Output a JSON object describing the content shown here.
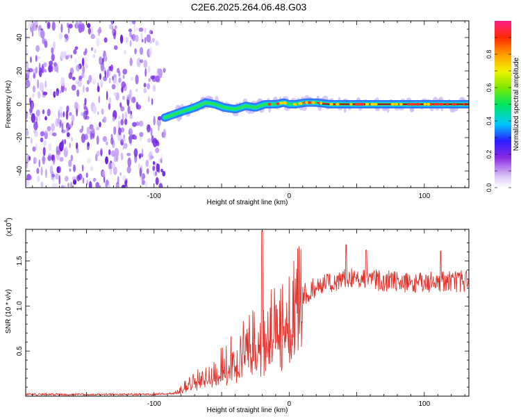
{
  "title": "C2E6.2025.264.06.48.G03",
  "colors": {
    "snr_line": "#e0302a",
    "background_cloud": "#7a2be8",
    "strip_band": "#1e90ff",
    "axis": "#000000"
  },
  "chart_data": [
    {
      "type": "heatmap",
      "title": "C2E6.2025.264.06.48.G03",
      "xlabel": "Height of straight line (km)",
      "ylabel": "Frequency (Hz)",
      "xlim": [
        -195,
        133
      ],
      "ylim": [
        -50,
        50
      ],
      "x_ticks": [
        -100,
        0,
        100
      ],
      "x_tick_labels": [
        "-100",
        "0",
        "100"
      ],
      "y_ticks": [
        -40,
        -20,
        0,
        20,
        40
      ],
      "y_tick_labels": [
        "-40",
        "-20",
        "0",
        "20",
        "40"
      ],
      "noise_region_x": [
        -195,
        -92
      ],
      "signal_centroid": {
        "x": [
          -92,
          -85,
          -78,
          -70,
          -62,
          -55,
          -48,
          -40,
          -32,
          -25,
          -18,
          -10,
          -4,
          0,
          5,
          12,
          20,
          30,
          45,
          60,
          75,
          90,
          110,
          133
        ],
        "freq": [
          -8,
          -6,
          -4,
          -2,
          1,
          0,
          -2,
          -3,
          -1,
          -2,
          0,
          0,
          1,
          0,
          0,
          1,
          1,
          0,
          0,
          0,
          0,
          0,
          0,
          0
        ]
      },
      "colorbar": {
        "label": "Normalized spectral amplitude",
        "range": [
          0,
          1
        ],
        "ticks": [
          0.0,
          0.2,
          0.4,
          0.6,
          0.8
        ],
        "tick_labels": [
          "0.0",
          "0.2",
          "0.4",
          "0.6",
          "0.8"
        ]
      }
    },
    {
      "type": "line",
      "xlabel": "Height of straight line (km)",
      "ylabel": "SNR (10 * v/v)",
      "scale_label": "(x10",
      "scale_exponent": "4",
      "xlim": [
        -195,
        133
      ],
      "ylim": [
        0,
        1.85
      ],
      "x_ticks": [
        -100,
        0,
        100
      ],
      "x_tick_labels": [
        "-100",
        "0",
        "100"
      ],
      "y_ticks": [
        0.5,
        1.0,
        1.5
      ],
      "y_tick_labels": [
        "0.5",
        "1.0",
        "1.5"
      ],
      "series": [
        {
          "name": "SNR",
          "envelope_x": [
            -195,
            -100,
            -85,
            -80,
            -75,
            -70,
            -65,
            -60,
            -55,
            -50,
            -45,
            -40,
            -35,
            -30,
            -25,
            -20,
            -15,
            -10,
            -5,
            0,
            10,
            20,
            30,
            40,
            50,
            60,
            70,
            80,
            90,
            100,
            110,
            120,
            133
          ],
          "envelope_y": [
            0.02,
            0.02,
            0.03,
            0.08,
            0.14,
            0.18,
            0.22,
            0.25,
            0.3,
            0.35,
            0.4,
            0.47,
            0.55,
            0.6,
            0.65,
            0.7,
            0.75,
            0.82,
            0.92,
            1.0,
            1.12,
            1.22,
            1.27,
            1.3,
            1.31,
            1.3,
            1.28,
            1.27,
            1.27,
            1.26,
            1.26,
            1.27,
            1.28
          ],
          "spikes": [
            {
              "x": -20,
              "y": 1.83
            },
            {
              "x": 42,
              "y": 1.68
            },
            {
              "x": 57,
              "y": 1.62
            },
            {
              "x": 112,
              "y": 1.61
            }
          ]
        }
      ]
    }
  ]
}
